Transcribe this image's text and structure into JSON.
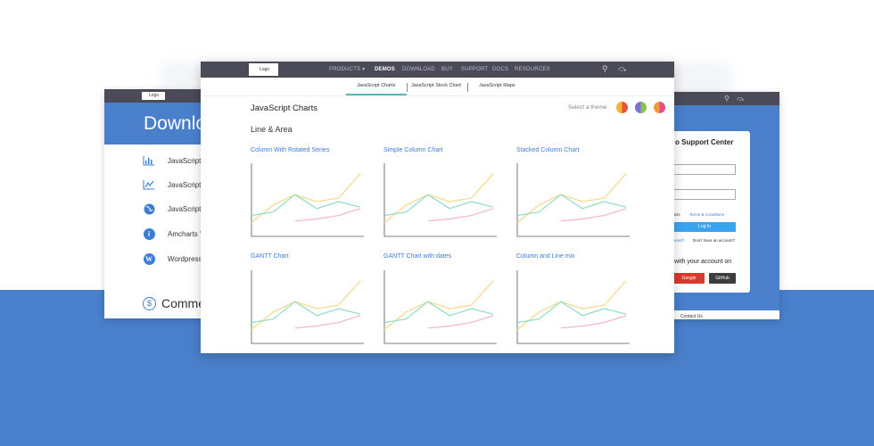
{
  "left_window": {
    "logo": "Logo",
    "hero_title": "Downlo",
    "items": [
      {
        "label": "JavaScript",
        "icon": "bar-chart-icon"
      },
      {
        "label": "JavaScript",
        "icon": "line-chart-icon"
      },
      {
        "label": "JavaScript",
        "icon": "globe-icon"
      },
      {
        "label": "Amcharts '",
        "icon": "info-icon"
      },
      {
        "label": "Wordpress",
        "icon": "wordpress-icon"
      }
    ],
    "commercial": "Comme",
    "commercial_symbol": "$"
  },
  "right_window": {
    "title": "o Support Center",
    "remember": "arts",
    "terms": "Terms & Conditions",
    "login": "Log In",
    "forgot": "word?",
    "no_account": "Don't have an account?",
    "with_account": "with your account on",
    "google": "Google",
    "github": "GitHub",
    "contact": "Contact Us"
  },
  "main_window": {
    "logo": "Logo",
    "nav": [
      "PRODUCTS",
      "DEMOS",
      "DOWNLOAD",
      "BUY",
      "SUPPORT",
      "DOCS",
      "RESOURCES"
    ],
    "nav_active": "DEMOS",
    "tabs": [
      "JavaScript Charts",
      "JavaScript Stock Chart",
      "JavaScript Maps"
    ],
    "page_title": "JavaScript Charts",
    "theme_label": "Select a theme:",
    "section": "Line & Area",
    "cards": [
      "Column With Rotated Series",
      "Simple Column Chart",
      "Stacked Column Chart",
      "GANTT Chart",
      "GANTT Chart with dates",
      "Column and Line mix"
    ],
    "colors": {
      "accent": "#3b7ed8",
      "nav_bg": "#4a4a58",
      "page_bg_blue": "#4a7fcb"
    }
  },
  "chart_data": {
    "type": "line",
    "x": [
      0,
      1,
      2,
      3,
      4,
      5
    ],
    "series": [
      {
        "values": [
          2,
          4.5,
          6,
          5,
          5.5,
          9
        ],
        "color": "#f7d98a"
      },
      {
        "values": [
          3,
          3.5,
          6,
          4,
          5,
          4.2
        ],
        "color": "#8fdcc6"
      },
      {
        "values": [
          null,
          null,
          2.2,
          2.5,
          3,
          4
        ],
        "color": "#f2b6c6"
      }
    ],
    "ylim": [
      0,
      10
    ]
  }
}
